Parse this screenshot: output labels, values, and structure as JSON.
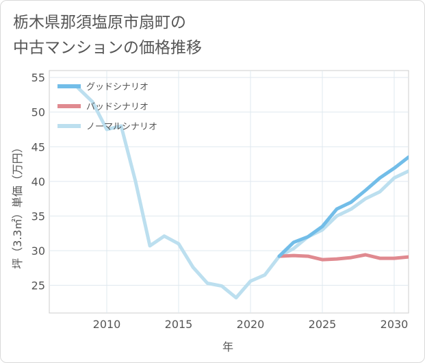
{
  "title_lines": [
    "栃木県那須塩原市扇町の",
    "中古マンションの価格推移"
  ],
  "chart_data": {
    "type": "line",
    "xlabel": "年",
    "ylabel": "坪（3.3㎡）単価（万円）",
    "xlim": [
      2006,
      2031
    ],
    "ylim": [
      21,
      56
    ],
    "x_ticks": [
      2010,
      2015,
      2020,
      2025,
      2030
    ],
    "y_ticks": [
      25,
      30,
      35,
      40,
      45,
      50,
      55
    ],
    "grid": true,
    "legend_position": "top-left",
    "series": [
      {
        "name": "グッドシナリオ",
        "color": "#72bde8",
        "x": [
          2022,
          2023,
          2024,
          2025,
          2026,
          2027,
          2028,
          2029,
          2030,
          2031
        ],
        "y": [
          29.2,
          31.2,
          32.0,
          33.5,
          36.0,
          37.0,
          38.7,
          40.5,
          41.9,
          43.5
        ]
      },
      {
        "name": "バッドシナリオ",
        "color": "#e08a90",
        "x": [
          2022,
          2023,
          2024,
          2025,
          2026,
          2027,
          2028,
          2029,
          2030,
          2031
        ],
        "y": [
          29.2,
          29.3,
          29.2,
          28.7,
          28.8,
          29.0,
          29.4,
          28.9,
          28.9,
          29.1
        ]
      },
      {
        "name": "ノーマルシナリオ",
        "color": "#bcdfef",
        "x": [
          2008,
          2009,
          2010,
          2011,
          2012,
          2013,
          2014,
          2015,
          2016,
          2017,
          2018,
          2019,
          2020,
          2021,
          2022,
          2023,
          2024,
          2025,
          2026,
          2027,
          2028,
          2029,
          2030,
          2031
        ],
        "y": [
          53.5,
          51.5,
          47.5,
          48.0,
          40.0,
          30.7,
          32.1,
          31.0,
          27.6,
          25.3,
          24.9,
          23.2,
          25.6,
          26.5,
          29.2,
          30.3,
          32.0,
          33.0,
          35.0,
          36.0,
          37.5,
          38.5,
          40.5,
          41.5
        ]
      }
    ]
  }
}
